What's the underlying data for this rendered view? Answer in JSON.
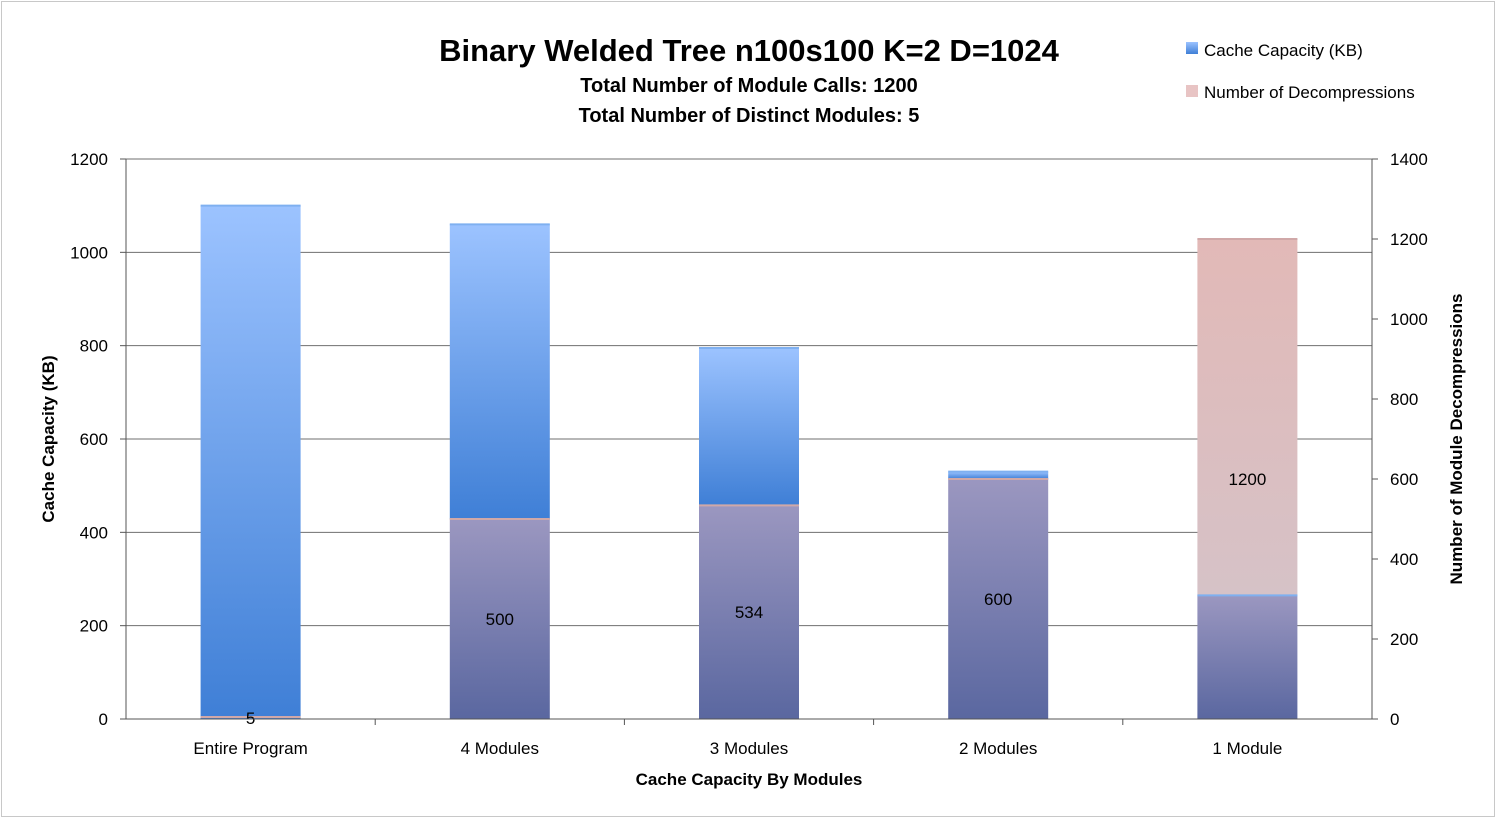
{
  "chart_data": {
    "type": "bar",
    "title": "Binary Welded Tree n100s100 K=2 D=1024",
    "subtitles": [
      "Total Number of Module Calls: 1200",
      "Total Number of Distinct Modules: 5"
    ],
    "categories": [
      "Entire Program",
      "4 Modules",
      "3 Modules",
      "2 Modules",
      "1 Module"
    ],
    "xlabel": "Cache Capacity By Modules",
    "ylabel": "Cache Capacity (KB)",
    "y2label": "Number of Module Decompressions",
    "ylim": [
      0,
      1200
    ],
    "y2lim": [
      0,
      1400
    ],
    "yticks": [
      "0",
      "200",
      "400",
      "600",
      "800",
      "1000",
      "1200"
    ],
    "y2ticks": [
      "0",
      "200",
      "400",
      "600",
      "800",
      "1000",
      "1200",
      "1400"
    ],
    "grid": true,
    "legend_position": "top-right",
    "series": [
      {
        "name": "Cache Capacity (KB)",
        "axis": "left",
        "color": "#4a8ee0",
        "values": [
          1100,
          1060,
          795,
          530,
          265
        ]
      },
      {
        "name": "Number of Decompressions",
        "axis": "right",
        "color": "#e8c4c4",
        "values": [
          5,
          500,
          534,
          600,
          1200
        ],
        "labels": [
          "5",
          "500",
          "534",
          "600",
          "1200"
        ]
      }
    ]
  }
}
